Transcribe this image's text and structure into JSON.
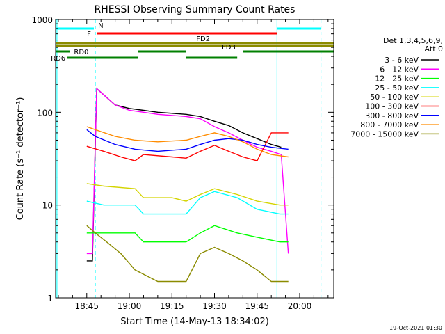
{
  "chart_data": {
    "type": "line",
    "title": "RHESSI Observing Summary Count Rates",
    "xlabel": "Start Time (14-May-13 18:34:02)",
    "ylabel": "Count Rate (s⁻¹ detector⁻¹)",
    "y_scale": "log",
    "ylim": [
      1,
      1000
    ],
    "xlim": [
      "18:34:02",
      "20:12:00"
    ],
    "x_ticks": [
      "18:45",
      "19:00",
      "19:15",
      "19:30",
      "19:45",
      "20:00"
    ],
    "y_ticks": [
      "1",
      "10",
      "100",
      "1000"
    ],
    "legend_title": [
      "Det 1,3,4,5,6,9,",
      "Att 0"
    ],
    "legend_position": "right",
    "footer": "19-Oct-2021 01:30",
    "series": [
      {
        "name": "3 - 6 keV",
        "color": "#000000",
        "points": [
          [
            "18:45:00",
            2.5
          ],
          [
            "18:47:00",
            2.5
          ],
          [
            "18:48:30",
            180
          ],
          [
            "18:55:00",
            120
          ],
          [
            "19:00:00",
            110
          ],
          [
            "19:05:00",
            105
          ],
          [
            "19:10:00",
            100
          ],
          [
            "19:20:00",
            95
          ],
          [
            "19:25:00",
            90
          ],
          [
            "19:30:00",
            80
          ],
          [
            "19:35:00",
            72
          ],
          [
            "19:40:00",
            60
          ],
          [
            "19:45:00",
            52
          ],
          [
            "19:50:00",
            45
          ],
          [
            "19:53:30",
            42
          ]
        ]
      },
      {
        "name": "6 - 12 keV",
        "color": "#ff00ff",
        "points": [
          [
            "18:45:00",
            3
          ],
          [
            "18:47:00",
            3
          ],
          [
            "18:48:30",
            180
          ],
          [
            "18:55:00",
            120
          ],
          [
            "19:00:00",
            105
          ],
          [
            "19:05:00",
            100
          ],
          [
            "19:10:00",
            95
          ],
          [
            "19:20:00",
            90
          ],
          [
            "19:25:00",
            85
          ],
          [
            "19:30:00",
            70
          ],
          [
            "19:35:00",
            60
          ],
          [
            "19:40:00",
            50
          ],
          [
            "19:45:00",
            42
          ],
          [
            "19:50:00",
            38
          ],
          [
            "19:53:30",
            35
          ],
          [
            "19:56:00",
            3
          ]
        ]
      },
      {
        "name": "12 - 25 keV",
        "color": "#00ff00",
        "points": [
          [
            "18:45:00",
            5
          ],
          [
            "18:51:00",
            5
          ],
          [
            "19:02:00",
            5
          ],
          [
            "19:05:00",
            4
          ],
          [
            "19:20:00",
            4
          ],
          [
            "19:25:00",
            5
          ],
          [
            "19:30:00",
            6
          ],
          [
            "19:38:00",
            5
          ],
          [
            "19:45:00",
            4.5
          ],
          [
            "19:53:00",
            4
          ],
          [
            "19:56:00",
            4
          ]
        ]
      },
      {
        "name": "25 - 50 keV",
        "color": "#00ffff",
        "points": [
          [
            "18:45:00",
            11
          ],
          [
            "18:51:00",
            10
          ],
          [
            "19:02:00",
            10
          ],
          [
            "19:05:00",
            8
          ],
          [
            "19:15:00",
            8
          ],
          [
            "19:20:00",
            8
          ],
          [
            "19:25:00",
            12
          ],
          [
            "19:30:00",
            14
          ],
          [
            "19:38:00",
            12
          ],
          [
            "19:45:00",
            9
          ],
          [
            "19:53:00",
            8
          ],
          [
            "19:56:00",
            8
          ]
        ]
      },
      {
        "name": "50 - 100 keV",
        "color": "#d4d400",
        "points": [
          [
            "18:45:00",
            17
          ],
          [
            "18:51:00",
            16
          ],
          [
            "19:02:00",
            15
          ],
          [
            "19:05:00",
            12
          ],
          [
            "19:15:00",
            12
          ],
          [
            "19:20:00",
            11
          ],
          [
            "19:25:00",
            13
          ],
          [
            "19:30:00",
            15
          ],
          [
            "19:38:00",
            13
          ],
          [
            "19:45:00",
            11
          ],
          [
            "19:53:00",
            10
          ],
          [
            "19:56:00",
            10
          ]
        ]
      },
      {
        "name": "100 - 300 keV",
        "color": "#ff0000",
        "points": [
          [
            "18:45:00",
            43
          ],
          [
            "18:51:00",
            38
          ],
          [
            "18:57:00",
            33
          ],
          [
            "19:02:00",
            30
          ],
          [
            "19:05:00",
            35
          ],
          [
            "19:15:00",
            33
          ],
          [
            "19:20:00",
            32
          ],
          [
            "19:25:00",
            38
          ],
          [
            "19:30:00",
            44
          ],
          [
            "19:35:00",
            38
          ],
          [
            "19:40:00",
            33
          ],
          [
            "19:45:00",
            30
          ],
          [
            "19:50:00",
            60
          ],
          [
            "19:56:00",
            60
          ]
        ]
      },
      {
        "name": "300 - 800 keV",
        "color": "#0000ff",
        "points": [
          [
            "18:45:00",
            65
          ],
          [
            "18:48:00",
            55
          ],
          [
            "18:55:00",
            45
          ],
          [
            "19:02:00",
            40
          ],
          [
            "19:10:00",
            38
          ],
          [
            "19:20:00",
            40
          ],
          [
            "19:25:00",
            45
          ],
          [
            "19:30:00",
            50
          ],
          [
            "19:35:00",
            52
          ],
          [
            "19:40:00",
            50
          ],
          [
            "19:45:00",
            45
          ],
          [
            "19:50:00",
            42
          ],
          [
            "19:56:00",
            40
          ]
        ]
      },
      {
        "name": "800 - 7000 keV",
        "color": "#ff8c00",
        "points": [
          [
            "18:45:00",
            70
          ],
          [
            "18:48:00",
            65
          ],
          [
            "18:55:00",
            55
          ],
          [
            "19:02:00",
            50
          ],
          [
            "19:10:00",
            48
          ],
          [
            "19:20:00",
            50
          ],
          [
            "19:25:00",
            55
          ],
          [
            "19:30:00",
            60
          ],
          [
            "19:35:00",
            55
          ],
          [
            "19:40:00",
            48
          ],
          [
            "19:45:00",
            40
          ],
          [
            "19:50:00",
            35
          ],
          [
            "19:56:00",
            33
          ]
        ]
      },
      {
        "name": "7000 - 15000 keV",
        "color": "#8b8b00",
        "points": [
          [
            "18:45:00",
            6
          ],
          [
            "18:48:00",
            5
          ],
          [
            "18:52:00",
            4
          ],
          [
            "18:57:00",
            3
          ],
          [
            "19:02:00",
            2
          ],
          [
            "19:10:00",
            1.5
          ],
          [
            "19:20:00",
            1.5
          ],
          [
            "19:25:00",
            3
          ],
          [
            "19:30:00",
            3.5
          ],
          [
            "19:35:00",
            3
          ],
          [
            "19:40:00",
            2.5
          ],
          [
            "19:45:00",
            2
          ],
          [
            "19:50:00",
            1.5
          ],
          [
            "19:56:00",
            1.5
          ]
        ]
      }
    ],
    "flag_bars": [
      {
        "label": "N",
        "color": "#00ffff",
        "row": 0,
        "segments": [
          [
            "18:34:02",
            "18:47:30"
          ],
          [
            "19:52:00",
            "20:07:30"
          ]
        ]
      },
      {
        "label": "F",
        "color": "#ff0000",
        "row": 1,
        "segments": [
          [
            "18:48:30",
            "19:52:00"
          ]
        ]
      },
      {
        "label": "FD2",
        "color": "#8b8b00",
        "row": 2,
        "segments": [
          [
            "18:34:02",
            "20:12:00"
          ]
        ]
      },
      {
        "label": "FD3",
        "color": "#8b8b00",
        "row": 3,
        "segments": [
          [
            "18:34:02",
            "20:12:00"
          ]
        ]
      },
      {
        "label": "RD0",
        "color": "#008000",
        "row": 4,
        "segments": [
          [
            "18:34:02",
            "18:39:00"
          ],
          [
            "19:03:00",
            "19:20:00"
          ],
          [
            "19:40:00",
            "20:12:00"
          ]
        ]
      },
      {
        "label": "RD6",
        "color": "#008000",
        "row": 5,
        "segments": [
          [
            "18:38:00",
            "19:03:00"
          ],
          [
            "19:20:00",
            "19:38:00"
          ]
        ]
      }
    ],
    "vertical_markers": [
      {
        "time": "18:34:30",
        "color": "#00ffff",
        "style": "solid"
      },
      {
        "time": "18:48:00",
        "color": "#00ffff",
        "style": "dashed"
      },
      {
        "time": "19:52:00",
        "color": "#00ffff",
        "style": "solid"
      },
      {
        "time": "20:07:30",
        "color": "#00ffff",
        "style": "dashed"
      }
    ]
  }
}
